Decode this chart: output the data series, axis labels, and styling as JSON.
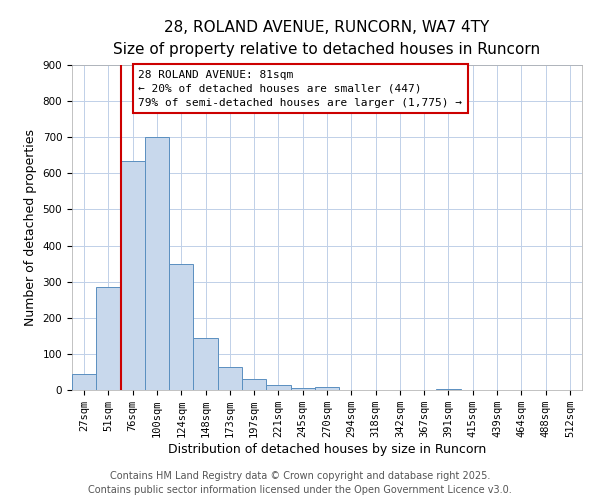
{
  "title": "28, ROLAND AVENUE, RUNCORN, WA7 4TY",
  "subtitle": "Size of property relative to detached houses in Runcorn",
  "xlabel": "Distribution of detached houses by size in Runcorn",
  "ylabel": "Number of detached properties",
  "bar_labels": [
    "27sqm",
    "51sqm",
    "76sqm",
    "100sqm",
    "124sqm",
    "148sqm",
    "173sqm",
    "197sqm",
    "221sqm",
    "245sqm",
    "270sqm",
    "294sqm",
    "318sqm",
    "342sqm",
    "367sqm",
    "391sqm",
    "415sqm",
    "439sqm",
    "464sqm",
    "488sqm",
    "512sqm"
  ],
  "bar_values": [
    43,
    285,
    635,
    700,
    350,
    145,
    65,
    30,
    13,
    5,
    8,
    0,
    0,
    0,
    0,
    2,
    0,
    0,
    0,
    0,
    0
  ],
  "bar_color": "#c8d8ec",
  "bar_edge_color": "#5a8fc0",
  "vline_color": "#cc0000",
  "vline_pos": 1.5,
  "ylim": [
    0,
    900
  ],
  "yticks": [
    0,
    100,
    200,
    300,
    400,
    500,
    600,
    700,
    800,
    900
  ],
  "annotation_title": "28 ROLAND AVENUE: 81sqm",
  "annotation_line1": "← 20% of detached houses are smaller (447)",
  "annotation_line2": "79% of semi-detached houses are larger (1,775) →",
  "annotation_box_color": "#ffffff",
  "annotation_box_edge_color": "#cc0000",
  "footer1": "Contains HM Land Registry data © Crown copyright and database right 2025.",
  "footer2": "Contains public sector information licensed under the Open Government Licence v3.0.",
  "background_color": "#ffffff",
  "grid_color": "#c0d0e8",
  "title_fontsize": 11,
  "subtitle_fontsize": 9.5,
  "axis_label_fontsize": 9,
  "tick_fontsize": 7.5,
  "annotation_fontsize": 8,
  "footer_fontsize": 7
}
